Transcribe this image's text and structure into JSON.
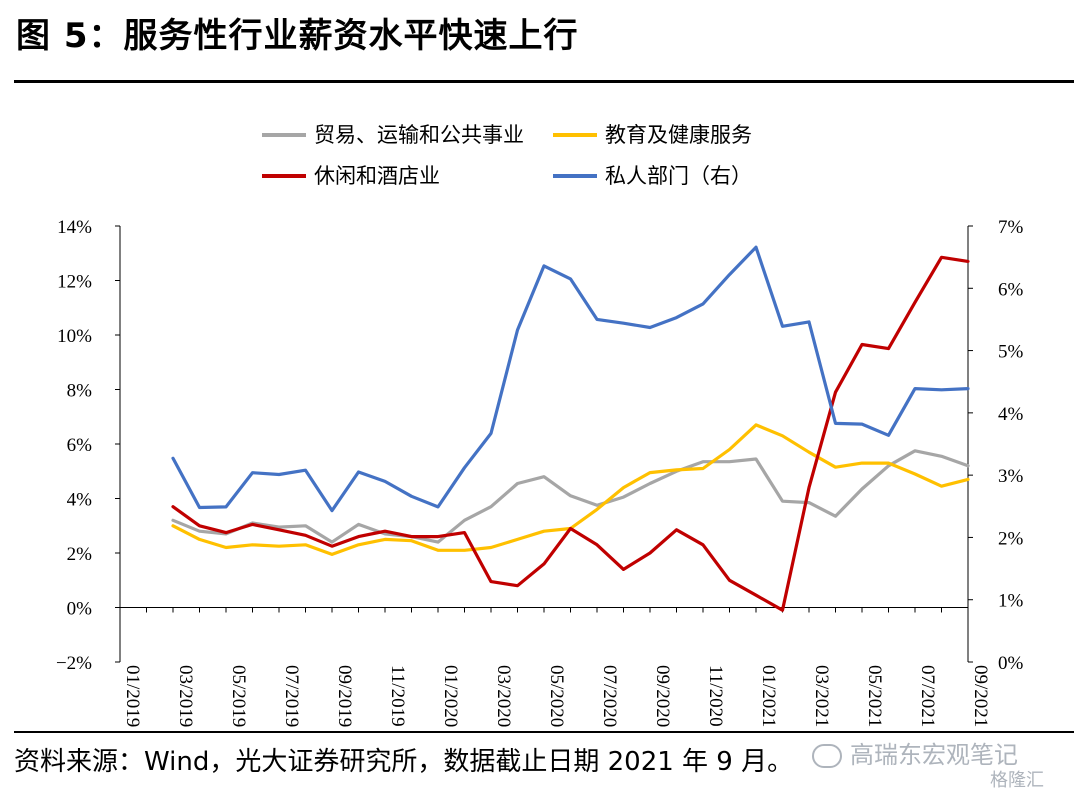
{
  "title": "图 5：服务性行业薪资水平快速上行",
  "footer": "资料来源：Wind，光大证券研究所，数据截止日期 2021 年 9 月。",
  "watermark": "高瑞东宏观笔记",
  "watermark2": "格隆汇",
  "colors": {
    "trade": "#a6a6a6",
    "education": "#ffc000",
    "leisure": "#c00000",
    "private": "#4472c4"
  },
  "chart_data": {
    "type": "line",
    "x": [
      "01/2019",
      "02/2019",
      "03/2019",
      "04/2019",
      "05/2019",
      "06/2019",
      "07/2019",
      "08/2019",
      "09/2019",
      "10/2019",
      "11/2019",
      "12/2019",
      "01/2020",
      "02/2020",
      "03/2020",
      "04/2020",
      "05/2020",
      "06/2020",
      "07/2020",
      "08/2020",
      "09/2020",
      "10/2020",
      "11/2020",
      "12/2020",
      "01/2021",
      "02/2021",
      "03/2021",
      "04/2021",
      "05/2021",
      "06/2021",
      "07/2021",
      "08/2021",
      "09/2021"
    ],
    "x_tick_labels": [
      "01/2019",
      "03/2019",
      "05/2019",
      "07/2019",
      "09/2019",
      "11/2019",
      "01/2020",
      "03/2020",
      "05/2020",
      "07/2020",
      "09/2020",
      "11/2020",
      "01/2021",
      "03/2021",
      "05/2021",
      "07/2021",
      "09/2021"
    ],
    "y_left": {
      "range": [
        -2,
        14
      ],
      "ticks": [
        "−2%",
        "0%",
        "2%",
        "4%",
        "6%",
        "8%",
        "10%",
        "12%",
        "14%"
      ]
    },
    "y_right": {
      "range": [
        0,
        7
      ],
      "ticks": [
        "0%",
        "1%",
        "2%",
        "3%",
        "4%",
        "5%",
        "6%",
        "7%"
      ]
    },
    "legend": [
      "贸易、运输和公共事业",
      "教育及健康服务",
      "休闲和酒店业",
      "私人部门（右）"
    ],
    "series": [
      {
        "name": "贸易、运输和公共事业",
        "axis": "left",
        "color_key": "trade",
        "values": [
          null,
          null,
          3.2,
          2.8,
          2.7,
          3.1,
          2.95,
          3.0,
          2.4,
          3.05,
          2.7,
          2.6,
          2.4,
          3.2,
          3.7,
          4.55,
          4.8,
          4.1,
          3.75,
          4.05,
          4.55,
          5.0,
          5.35,
          5.35,
          5.45,
          3.9,
          3.85,
          3.35,
          4.35,
          5.2,
          5.75,
          5.55,
          5.2
        ]
      },
      {
        "name": "教育及健康服务",
        "axis": "left",
        "color_key": "education",
        "values": [
          null,
          null,
          3.0,
          2.5,
          2.2,
          2.3,
          2.25,
          2.3,
          1.95,
          2.3,
          2.5,
          2.45,
          2.1,
          2.1,
          2.2,
          2.5,
          2.8,
          2.9,
          3.6,
          4.4,
          4.95,
          5.05,
          5.1,
          5.8,
          6.7,
          6.3,
          5.7,
          5.15,
          5.3,
          5.3,
          4.9,
          4.45,
          4.7
        ]
      },
      {
        "name": "休闲和酒店业",
        "axis": "left",
        "color_key": "leisure",
        "values": [
          null,
          null,
          3.7,
          3.0,
          2.75,
          3.05,
          2.85,
          2.65,
          2.25,
          2.6,
          2.8,
          2.6,
          2.6,
          2.75,
          0.95,
          0.8,
          1.6,
          2.9,
          2.3,
          1.4,
          2.0,
          2.85,
          2.3,
          1.0,
          0.45,
          -0.1,
          4.4,
          7.9,
          9.65,
          9.5,
          11.2,
          12.85,
          12.7
        ]
      },
      {
        "name": "私人部门（右）",
        "axis": "right",
        "color_key": "private",
        "values": [
          null,
          null,
          3.27,
          2.48,
          2.49,
          3.04,
          3.01,
          3.08,
          2.43,
          3.05,
          2.9,
          2.66,
          2.49,
          3.12,
          3.67,
          5.33,
          6.36,
          6.15,
          5.5,
          5.44,
          5.37,
          5.53,
          5.75,
          6.22,
          6.66,
          5.39,
          5.46,
          3.83,
          3.82,
          3.64,
          4.39,
          4.37,
          4.39
        ]
      }
    ],
    "grid": false,
    "legend_position": "top"
  }
}
